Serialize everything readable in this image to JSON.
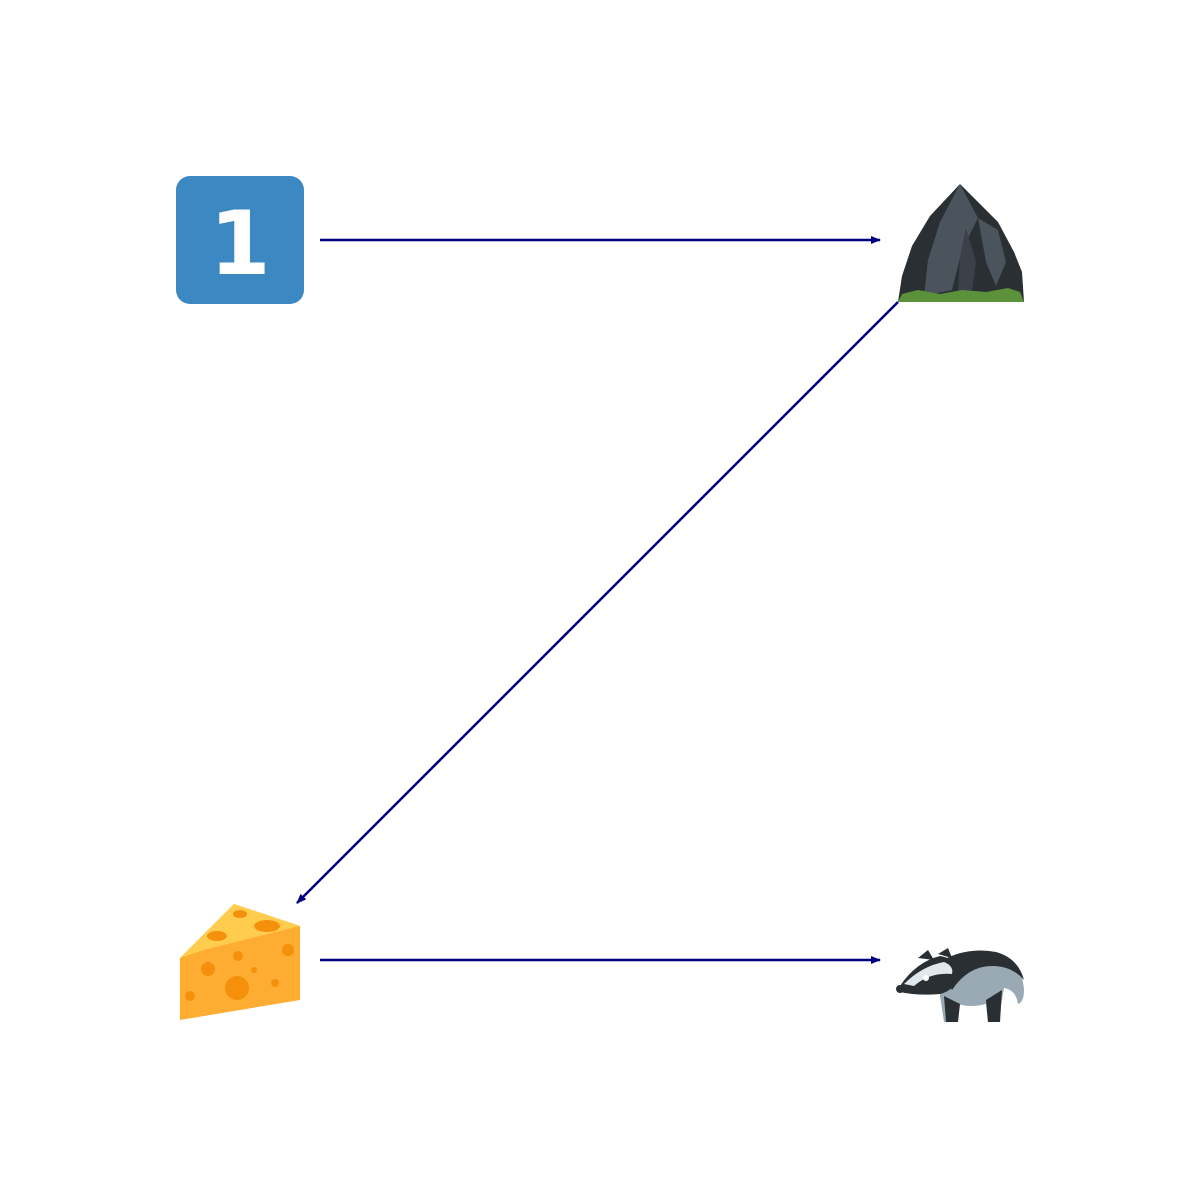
{
  "diagram": {
    "type": "flow",
    "nodes": [
      {
        "id": "n1",
        "icon": "keycap-digit-one-icon",
        "text": "1"
      },
      {
        "id": "n2",
        "icon": "rock-icon"
      },
      {
        "id": "n3",
        "icon": "cheese-wedge-icon"
      },
      {
        "id": "n4",
        "icon": "badger-icon"
      }
    ],
    "edges": [
      {
        "from": "n1",
        "to": "n2"
      },
      {
        "from": "n2",
        "to": "n3"
      },
      {
        "from": "n3",
        "to": "n4"
      }
    ]
  },
  "colors": {
    "arrow": "#000080",
    "keycap": "#3B88C3",
    "rock_dark": "#292F33",
    "rock_mid": "#4B545D",
    "grass": "#5C913B",
    "cheese": "#FFAC33",
    "cheese_top": "#FFCC4D",
    "cheese_hole": "#F4900C",
    "badger_dark": "#292F33",
    "badger_body": "#99AAB5",
    "badger_light": "#E1E8ED"
  }
}
